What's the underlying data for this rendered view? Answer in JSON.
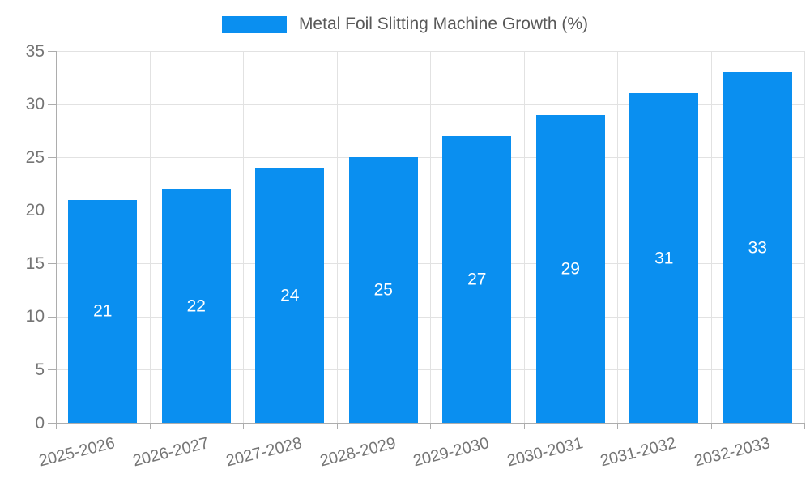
{
  "legend": {
    "label": "Metal Foil Slitting Machine Growth (%)"
  },
  "chart_data": {
    "type": "bar",
    "title": "Metal Foil Slitting Machine Growth (%)",
    "series_name": "Metal Foil Slitting Machine Growth (%)",
    "categories": [
      "2025-2026",
      "2026-2027",
      "2027-2028",
      "2028-2029",
      "2029-2030",
      "2030-2031",
      "2031-2032",
      "2032-2033"
    ],
    "values": [
      21,
      22,
      24,
      25,
      27,
      29,
      31,
      33
    ],
    "value_labels": [
      "21",
      "22",
      "24",
      "25",
      "27",
      "29",
      "31",
      "33"
    ],
    "ylim": [
      0,
      35
    ],
    "yticks": [
      0,
      5,
      10,
      15,
      20,
      25,
      30,
      35
    ],
    "x_label_rotation_deg": -14,
    "legend_position": "top-center",
    "grid": {
      "horizontal": true,
      "vertical": true
    },
    "colors": {
      "bar": "#0a8ff0",
      "value_label": "#ffffff",
      "grid": "#e2e2e2",
      "axis": "#adadad",
      "tick_label": "#757575",
      "legend_text": "#595959"
    }
  }
}
